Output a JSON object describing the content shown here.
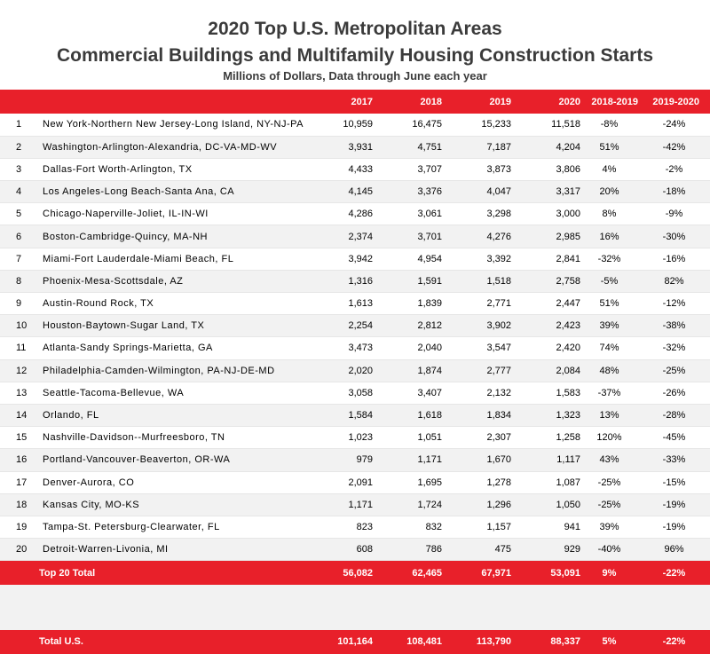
{
  "chart_data": {
    "type": "table",
    "title": "2020 Top U.S. Metropolitan Areas",
    "title_line2": "Commercial Buildings and Multifamily Housing Construction Starts",
    "subtitle": "Millions of Dollars, Data through June each year",
    "columns": [
      "2017",
      "2018",
      "2019",
      "2020",
      "2018-2019",
      "2019-2020"
    ],
    "rows": [
      {
        "rank": "1",
        "name": "New York-Northern New Jersey-Long Island, NY-NJ-PA",
        "values": [
          "10,959",
          "16,475",
          "15,233",
          "11,518"
        ],
        "changes": [
          "-8%",
          "-24%"
        ]
      },
      {
        "rank": "2",
        "name": "Washington-Arlington-Alexandria, DC-VA-MD-WV",
        "values": [
          "3,931",
          "4,751",
          "7,187",
          "4,204"
        ],
        "changes": [
          "51%",
          "-42%"
        ]
      },
      {
        "rank": "3",
        "name": "Dallas-Fort Worth-Arlington, TX",
        "values": [
          "4,433",
          "3,707",
          "3,873",
          "3,806"
        ],
        "changes": [
          "4%",
          "-2%"
        ]
      },
      {
        "rank": "4",
        "name": "Los Angeles-Long Beach-Santa Ana, CA",
        "values": [
          "4,145",
          "3,376",
          "4,047",
          "3,317"
        ],
        "changes": [
          "20%",
          "-18%"
        ]
      },
      {
        "rank": "5",
        "name": "Chicago-Naperville-Joliet, IL-IN-WI",
        "values": [
          "4,286",
          "3,061",
          "3,298",
          "3,000"
        ],
        "changes": [
          "8%",
          "-9%"
        ]
      },
      {
        "rank": "6",
        "name": "Boston-Cambridge-Quincy, MA-NH",
        "values": [
          "2,374",
          "3,701",
          "4,276",
          "2,985"
        ],
        "changes": [
          "16%",
          "-30%"
        ]
      },
      {
        "rank": "7",
        "name": "Miami-Fort Lauderdale-Miami Beach, FL",
        "values": [
          "3,942",
          "4,954",
          "3,392",
          "2,841"
        ],
        "changes": [
          "-32%",
          "-16%"
        ]
      },
      {
        "rank": "8",
        "name": "Phoenix-Mesa-Scottsdale, AZ",
        "values": [
          "1,316",
          "1,591",
          "1,518",
          "2,758"
        ],
        "changes": [
          "-5%",
          "82%"
        ]
      },
      {
        "rank": "9",
        "name": "Austin-Round Rock, TX",
        "values": [
          "1,613",
          "1,839",
          "2,771",
          "2,447"
        ],
        "changes": [
          "51%",
          "-12%"
        ]
      },
      {
        "rank": "10",
        "name": "Houston-Baytown-Sugar Land, TX",
        "values": [
          "2,254",
          "2,812",
          "3,902",
          "2,423"
        ],
        "changes": [
          "39%",
          "-38%"
        ]
      },
      {
        "rank": "11",
        "name": "Atlanta-Sandy Springs-Marietta, GA",
        "values": [
          "3,473",
          "2,040",
          "3,547",
          "2,420"
        ],
        "changes": [
          "74%",
          "-32%"
        ]
      },
      {
        "rank": "12",
        "name": "Philadelphia-Camden-Wilmington, PA-NJ-DE-MD",
        "values": [
          "2,020",
          "1,874",
          "2,777",
          "2,084"
        ],
        "changes": [
          "48%",
          "-25%"
        ]
      },
      {
        "rank": "13",
        "name": "Seattle-Tacoma-Bellevue, WA",
        "values": [
          "3,058",
          "3,407",
          "2,132",
          "1,583"
        ],
        "changes": [
          "-37%",
          "-26%"
        ]
      },
      {
        "rank": "14",
        "name": "Orlando, FL",
        "values": [
          "1,584",
          "1,618",
          "1,834",
          "1,323"
        ],
        "changes": [
          "13%",
          "-28%"
        ]
      },
      {
        "rank": "15",
        "name": "Nashville-Davidson--Murfreesboro, TN",
        "values": [
          "1,023",
          "1,051",
          "2,307",
          "1,258"
        ],
        "changes": [
          "120%",
          "-45%"
        ]
      },
      {
        "rank": "16",
        "name": "Portland-Vancouver-Beaverton, OR-WA",
        "values": [
          "979",
          "1,171",
          "1,670",
          "1,117"
        ],
        "changes": [
          "43%",
          "-33%"
        ]
      },
      {
        "rank": "17",
        "name": "Denver-Aurora, CO",
        "values": [
          "2,091",
          "1,695",
          "1,278",
          "1,087"
        ],
        "changes": [
          "-25%",
          "-15%"
        ]
      },
      {
        "rank": "18",
        "name": "Kansas City, MO-KS",
        "values": [
          "1,171",
          "1,724",
          "1,296",
          "1,050"
        ],
        "changes": [
          "-25%",
          "-19%"
        ]
      },
      {
        "rank": "19",
        "name": "Tampa-St. Petersburg-Clearwater, FL",
        "values": [
          "823",
          "832",
          "1,157",
          "941"
        ],
        "changes": [
          "39%",
          "-19%"
        ]
      },
      {
        "rank": "20",
        "name": "Detroit-Warren-Livonia, MI",
        "values": [
          "608",
          "786",
          "475",
          "929"
        ],
        "changes": [
          "-40%",
          "96%"
        ]
      }
    ],
    "top20_total": {
      "label": "Top 20 Total",
      "values": [
        "56,082",
        "62,465",
        "67,971",
        "53,091"
      ],
      "changes": [
        "9%",
        "-22%"
      ]
    },
    "us_total": {
      "label": "Total U.S.",
      "values": [
        "101,164",
        "108,481",
        "113,790",
        "88,337"
      ],
      "changes": [
        "5%",
        "-22%"
      ]
    },
    "colors": {
      "header": "#e8202a",
      "stripe": "#f2f2f2",
      "title": "#3b3b3b"
    }
  }
}
